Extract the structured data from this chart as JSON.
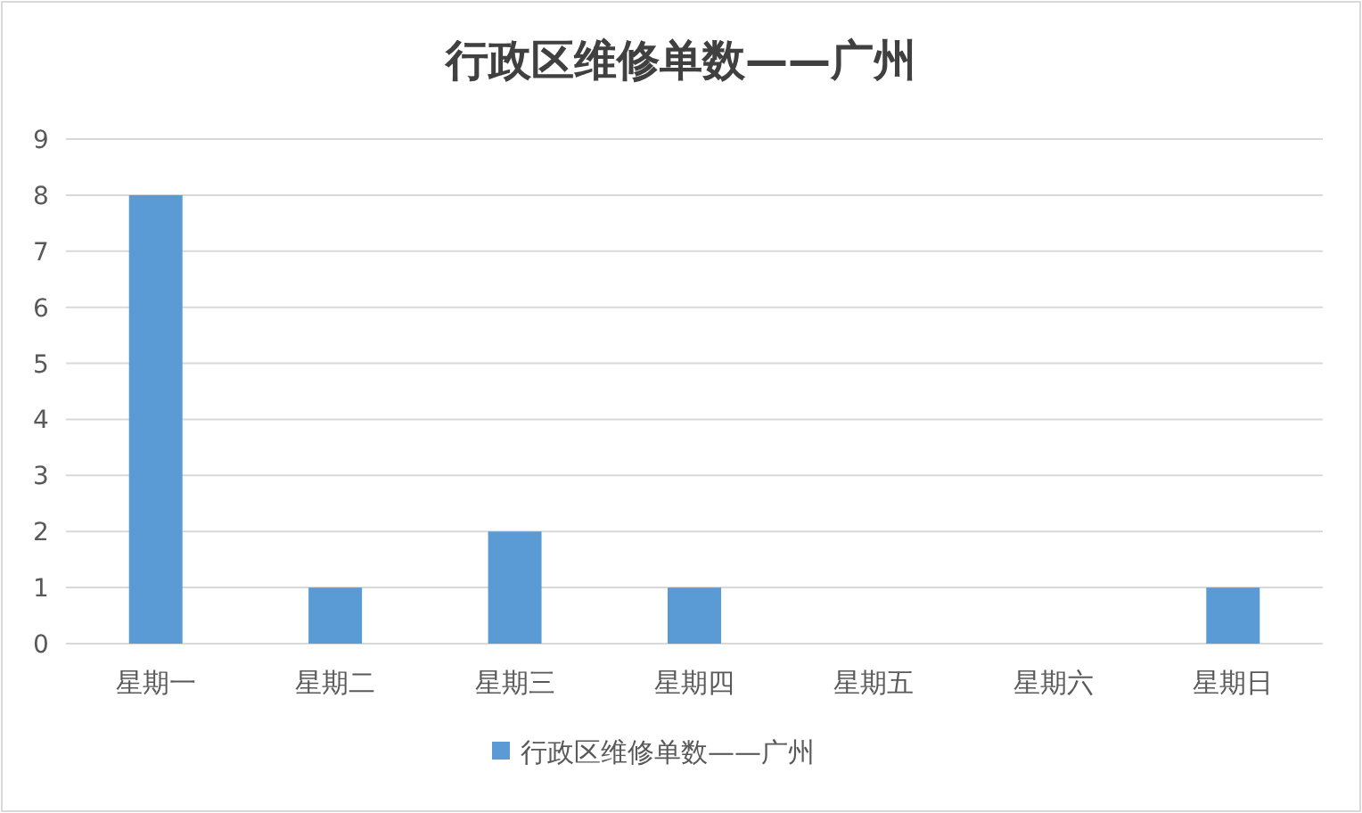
{
  "chart_data": {
    "type": "bar",
    "title": "行政区维修单数——广州",
    "categories": [
      "星期一",
      "星期二",
      "星期三",
      "星期四",
      "星期五",
      "星期六",
      "星期日"
    ],
    "series": [
      {
        "name": "行政区维修单数——广州",
        "color": "#5b9bd5",
        "values": [
          8,
          1,
          2,
          1,
          0,
          0,
          1
        ]
      }
    ],
    "ylim": [
      0,
      9
    ],
    "yticks": [
      0,
      1,
      2,
      3,
      4,
      5,
      6,
      7,
      8,
      9
    ],
    "grid": "y",
    "legend": "bottom"
  }
}
